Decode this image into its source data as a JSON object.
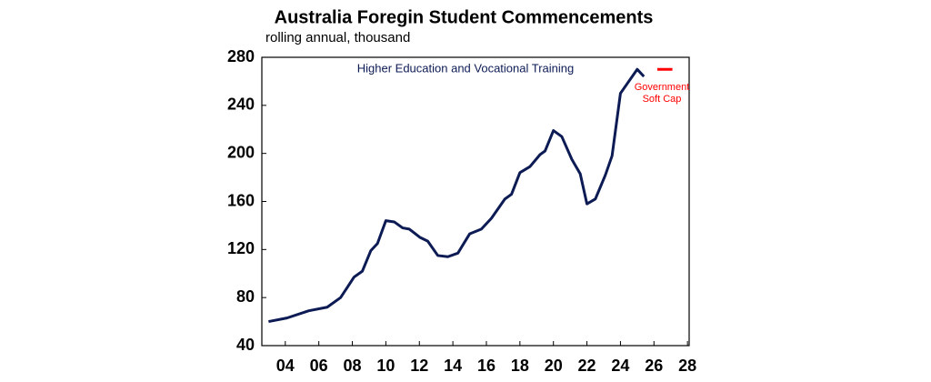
{
  "chart_data": {
    "type": "line",
    "title": "Australia Foregin Student Commencements",
    "subtitle": "rolling annual, thousand",
    "x": null,
    "series": [
      {
        "name": "Higher Education and Vocational Training",
        "color": "#0d1b55",
        "x": [
          2003.0,
          2004.1,
          2005.4,
          2006.5,
          2007.3,
          2008.1,
          2008.6,
          2009.1,
          2009.5,
          2010.0,
          2010.5,
          2011.0,
          2011.4,
          2012.05,
          2012.5,
          2013.1,
          2013.7,
          2014.3,
          2015.0,
          2015.7,
          2016.3,
          2017.1,
          2017.5,
          2018.0,
          2018.6,
          2019.2,
          2019.5,
          2020.0,
          2020.5,
          2021.1,
          2021.6,
          2022.0,
          2022.5,
          2023.1,
          2023.5,
          2024.0,
          2024.4,
          2025.0,
          2025.4
        ],
        "values": [
          60,
          63,
          69,
          72,
          80,
          97,
          102,
          119,
          125,
          144,
          143,
          138,
          137,
          130,
          127,
          115,
          114,
          117,
          133,
          137,
          146,
          162,
          166,
          184,
          189,
          199,
          202,
          219,
          214,
          195,
          183,
          158,
          162,
          182,
          198,
          250,
          258,
          270,
          264
        ]
      },
      {
        "name": "Government Soft Cap",
        "color": "#ff0000",
        "x": [
          2026.2,
          2027.1
        ],
        "values": [
          270,
          270
        ]
      }
    ],
    "xlim": [
      2002.6,
      2028.1
    ],
    "xticks": [
      {
        "value": 2004,
        "label": "04"
      },
      {
        "value": 2006,
        "label": "06"
      },
      {
        "value": 2008,
        "label": "08"
      },
      {
        "value": 2010,
        "label": "10"
      },
      {
        "value": 2012,
        "label": "12"
      },
      {
        "value": 2014,
        "label": "14"
      },
      {
        "value": 2016,
        "label": "16"
      },
      {
        "value": 2018,
        "label": "18"
      },
      {
        "value": 2020,
        "label": "20"
      },
      {
        "value": 2022,
        "label": "22"
      },
      {
        "value": 2024,
        "label": "24"
      },
      {
        "value": 2026,
        "label": "26"
      },
      {
        "value": 2028,
        "label": "28"
      }
    ],
    "ylim": [
      40,
      280
    ],
    "yticks": [
      40,
      80,
      120,
      160,
      200,
      240,
      280
    ]
  }
}
